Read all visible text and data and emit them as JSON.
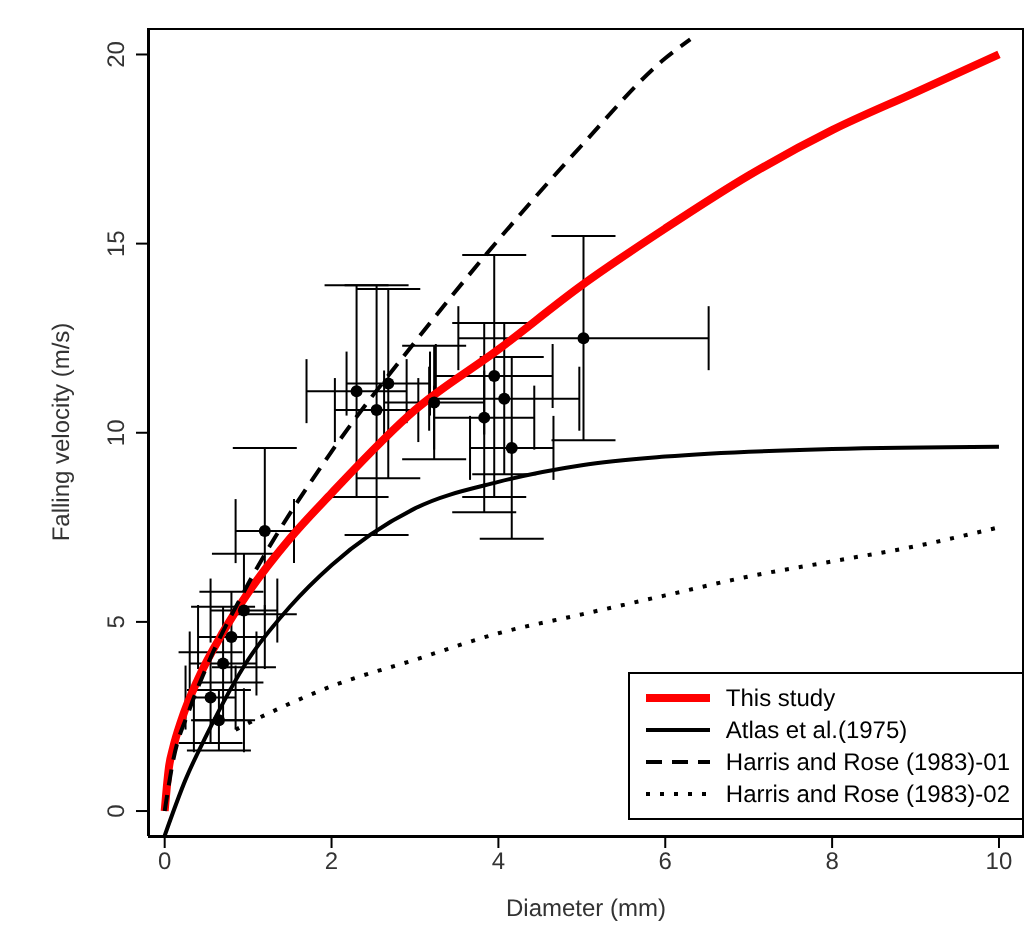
{
  "chart_data": {
    "type": "line",
    "xlabel": "Diameter (mm)",
    "ylabel": "Falling velocity (m/s)",
    "xlim": [
      -0.2,
      10.3
    ],
    "ylim": [
      -0.66,
      20.7
    ],
    "xticks": [
      0,
      2,
      4,
      6,
      8,
      10
    ],
    "yticks": [
      0,
      5,
      10,
      15,
      20
    ],
    "grid": false,
    "legend": "bottom right",
    "series": [
      {
        "type": "scatter",
        "marker": "circle",
        "color": "#000000",
        "x": [
          0.55,
          0.65,
          0.7,
          0.8,
          0.95,
          1.2,
          2.3,
          2.54,
          2.68,
          3.23,
          3.83,
          3.95,
          4.07,
          4.16,
          5.02
        ],
        "values": [
          3.0,
          2.4,
          3.9,
          4.6,
          5.3,
          7.4,
          11.1,
          10.6,
          11.3,
          10.8,
          10.4,
          11.5,
          10.9,
          9.6,
          12.5
        ],
        "errors": [
          1.2,
          0.8,
          1.5,
          1.2,
          1.5,
          2.2,
          2.8,
          3.3,
          2.5,
          1.5,
          2.5,
          3.2,
          2.0,
          2.4,
          2.7
        ],
        "xerrors": [
          0.3,
          0.3,
          0.4,
          0.4,
          0.4,
          0.35,
          0.6,
          0.5,
          0.5,
          0.6,
          0.6,
          0.7,
          0.9,
          0.5,
          1.5
        ]
      },
      {
        "name": "This study",
        "color": "#ff0000",
        "line_style": "solid",
        "marker": "none",
        "x": [
          0,
          0.05,
          0.1,
          0.2,
          0.4,
          0.7,
          1,
          1.5,
          2,
          3,
          4,
          5,
          6,
          7,
          8,
          9,
          10
        ],
        "values": [
          0,
          1.14,
          1.66,
          2.4,
          3.49,
          4.73,
          5.77,
          7.2,
          8.4,
          10.6,
          12.2,
          13.9,
          15.4,
          16.8,
          18.0,
          19.0,
          20.0
        ]
      },
      {
        "name": "Atlas et al.(1975)",
        "color": "#000000",
        "line_style": "solid",
        "marker": "none",
        "x": [
          0,
          0.25,
          0.5,
          1,
          1.5,
          2,
          3,
          4,
          5,
          6,
          8,
          10
        ],
        "values": [
          -0.65,
          0.83,
          2.0,
          4.0,
          5.4,
          6.5,
          8.0,
          8.7,
          9.14,
          9.37,
          9.57,
          9.63
        ]
      },
      {
        "name": "Harris and Rose (1983)-01",
        "color": "#000000",
        "line_style": "dashed",
        "marker": "none",
        "x": [
          0,
          0.1,
          0.3,
          0.5,
          1,
          2,
          3,
          4,
          5,
          6,
          6.3
        ],
        "values": [
          0,
          1.32,
          2.7,
          3.8,
          6.0,
          9.5,
          12.4,
          15.1,
          17.6,
          19.9,
          20.4
        ]
      },
      {
        "name": "Harris and Rose (1983)-02",
        "color": "#000000",
        "line_style": "dotted",
        "marker": "none",
        "x": [
          0.85,
          1,
          1.5,
          2,
          3,
          4,
          5,
          6,
          7,
          8,
          9,
          10
        ],
        "values": [
          2.15,
          2.32,
          2.84,
          3.3,
          4.0,
          4.7,
          5.2,
          5.7,
          6.2,
          6.6,
          7.0,
          7.5
        ]
      }
    ]
  }
}
